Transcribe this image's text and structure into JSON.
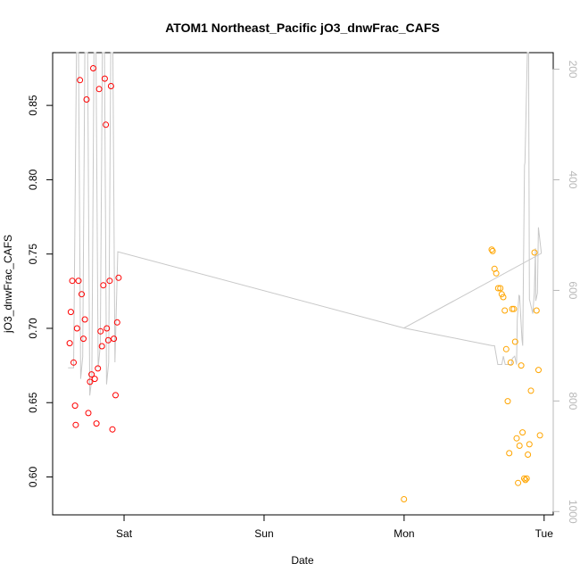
{
  "chart_data": {
    "type": "scatter",
    "title": "ATOM1 Northeast_Pacific jO3_dnwFrac_CAFS",
    "xlabel": "Date",
    "ylabel": "jO3_dnwFrac_CAFS",
    "x_ticks": [
      {
        "label": "Sat",
        "value": 1.0
      },
      {
        "label": "Sun",
        "value": 2.0
      },
      {
        "label": "Mon",
        "value": 3.0
      },
      {
        "label": "Tue",
        "value": 4.0
      }
    ],
    "xlim": [
      0.49,
      4.065
    ],
    "ylim": [
      0.5745,
      0.8855
    ],
    "y_ticks": [
      0.6,
      0.65,
      0.7,
      0.75,
      0.8,
      0.85
    ],
    "y2_label": "",
    "y2_ticks": [
      200,
      400,
      600,
      800,
      1000
    ],
    "y2lim": [
      1006,
      170
    ],
    "colors": {
      "series1": "#ff0000",
      "series2": "#ffa500",
      "line": "#c8c8c8",
      "right_axis": "#b8b8b8"
    },
    "series": [
      {
        "color": "#ff0000",
        "points": [
          [
            0.612,
            0.69
          ],
          [
            0.62,
            0.711
          ],
          [
            0.63,
            0.732
          ],
          [
            0.64,
            0.677
          ],
          [
            0.65,
            0.648
          ],
          [
            0.655,
            0.635
          ],
          [
            0.664,
            0.7
          ],
          [
            0.675,
            0.732
          ],
          [
            0.685,
            0.867
          ],
          [
            0.697,
            0.723
          ],
          [
            0.71,
            0.693
          ],
          [
            0.72,
            0.706
          ],
          [
            0.732,
            0.854
          ],
          [
            0.745,
            0.643
          ],
          [
            0.757,
            0.664
          ],
          [
            0.768,
            0.669
          ],
          [
            0.78,
            0.875
          ],
          [
            0.791,
            0.666
          ],
          [
            0.803,
            0.636
          ],
          [
            0.813,
            0.673
          ],
          [
            0.822,
            0.861
          ],
          [
            0.832,
            0.698
          ],
          [
            0.842,
            0.688
          ],
          [
            0.852,
            0.729
          ],
          [
            0.862,
            0.868
          ],
          [
            0.87,
            0.837
          ],
          [
            0.877,
            0.7
          ],
          [
            0.887,
            0.692
          ],
          [
            0.897,
            0.732
          ],
          [
            0.907,
            0.863
          ],
          [
            0.917,
            0.632
          ],
          [
            0.927,
            0.693
          ],
          [
            0.939,
            0.655
          ],
          [
            0.951,
            0.704
          ],
          [
            0.961,
            0.734
          ]
        ]
      },
      {
        "color": "#ffa500",
        "points": [
          [
            2.999,
            0.585
          ],
          [
            3.625,
            0.753
          ],
          [
            3.632,
            0.752
          ],
          [
            3.646,
            0.74
          ],
          [
            3.658,
            0.737
          ],
          [
            3.672,
            0.727
          ],
          [
            3.687,
            0.727
          ],
          [
            3.697,
            0.723
          ],
          [
            3.708,
            0.721
          ],
          [
            3.719,
            0.712
          ],
          [
            3.729,
            0.686
          ],
          [
            3.74,
            0.651
          ],
          [
            3.751,
            0.616
          ],
          [
            3.761,
            0.677
          ],
          [
            3.772,
            0.713
          ],
          [
            3.784,
            0.713
          ],
          [
            3.793,
            0.691
          ],
          [
            3.804,
            0.626
          ],
          [
            3.814,
            0.596
          ],
          [
            3.824,
            0.621
          ],
          [
            3.836,
            0.675
          ],
          [
            3.846,
            0.63
          ],
          [
            3.858,
            0.599
          ],
          [
            3.866,
            0.598
          ],
          [
            3.875,
            0.599
          ],
          [
            3.884,
            0.615
          ],
          [
            3.895,
            0.622
          ],
          [
            3.906,
            0.658
          ],
          [
            3.931,
            0.751
          ],
          [
            3.946,
            0.712
          ],
          [
            3.96,
            0.672
          ],
          [
            3.97,
            0.628
          ]
        ]
      }
    ],
    "line": {
      "color": "#c8c8c8",
      "axis": "right",
      "points": [
        [
          0.6,
          740
        ],
        [
          0.626,
          740
        ],
        [
          0.64,
          740
        ],
        [
          0.66,
          170
        ],
        [
          0.675,
          170
        ],
        [
          0.69,
          760
        ],
        [
          0.705,
          720
        ],
        [
          0.72,
          170
        ],
        [
          0.74,
          170
        ],
        [
          0.755,
          790
        ],
        [
          0.77,
          760
        ],
        [
          0.785,
          170
        ],
        [
          0.8,
          170
        ],
        [
          0.815,
          740
        ],
        [
          0.83,
          700
        ],
        [
          0.845,
          170
        ],
        [
          0.86,
          170
        ],
        [
          0.875,
          770
        ],
        [
          0.89,
          730
        ],
        [
          0.905,
          170
        ],
        [
          0.92,
          170
        ],
        [
          0.935,
          730
        ],
        [
          0.955,
          530
        ],
        [
          2.999,
          668
        ],
        [
          3.629,
          700
        ],
        [
          3.646,
          700
        ],
        [
          3.669,
          734
        ],
        [
          3.698,
          734
        ],
        [
          3.709,
          719
        ],
        [
          3.722,
          734
        ],
        [
          3.742,
          734
        ],
        [
          3.767,
          734
        ],
        [
          3.773,
          723
        ],
        [
          3.79,
          719
        ],
        [
          3.803,
          734
        ],
        [
          3.808,
          652
        ],
        [
          3.82,
          609
        ],
        [
          3.825,
          610
        ],
        [
          3.842,
          689
        ],
        [
          3.847,
          700
        ],
        [
          3.86,
          374
        ],
        [
          3.863,
          369
        ],
        [
          3.88,
          170
        ],
        [
          3.889,
          170
        ],
        [
          3.895,
          616
        ],
        [
          3.919,
          642
        ],
        [
          3.93,
          604
        ],
        [
          3.938,
          524
        ],
        [
          3.94,
          619
        ],
        [
          3.952,
          605
        ],
        [
          3.959,
          486
        ],
        [
          3.98,
          533
        ],
        [
          2.999,
          668
        ]
      ]
    }
  }
}
